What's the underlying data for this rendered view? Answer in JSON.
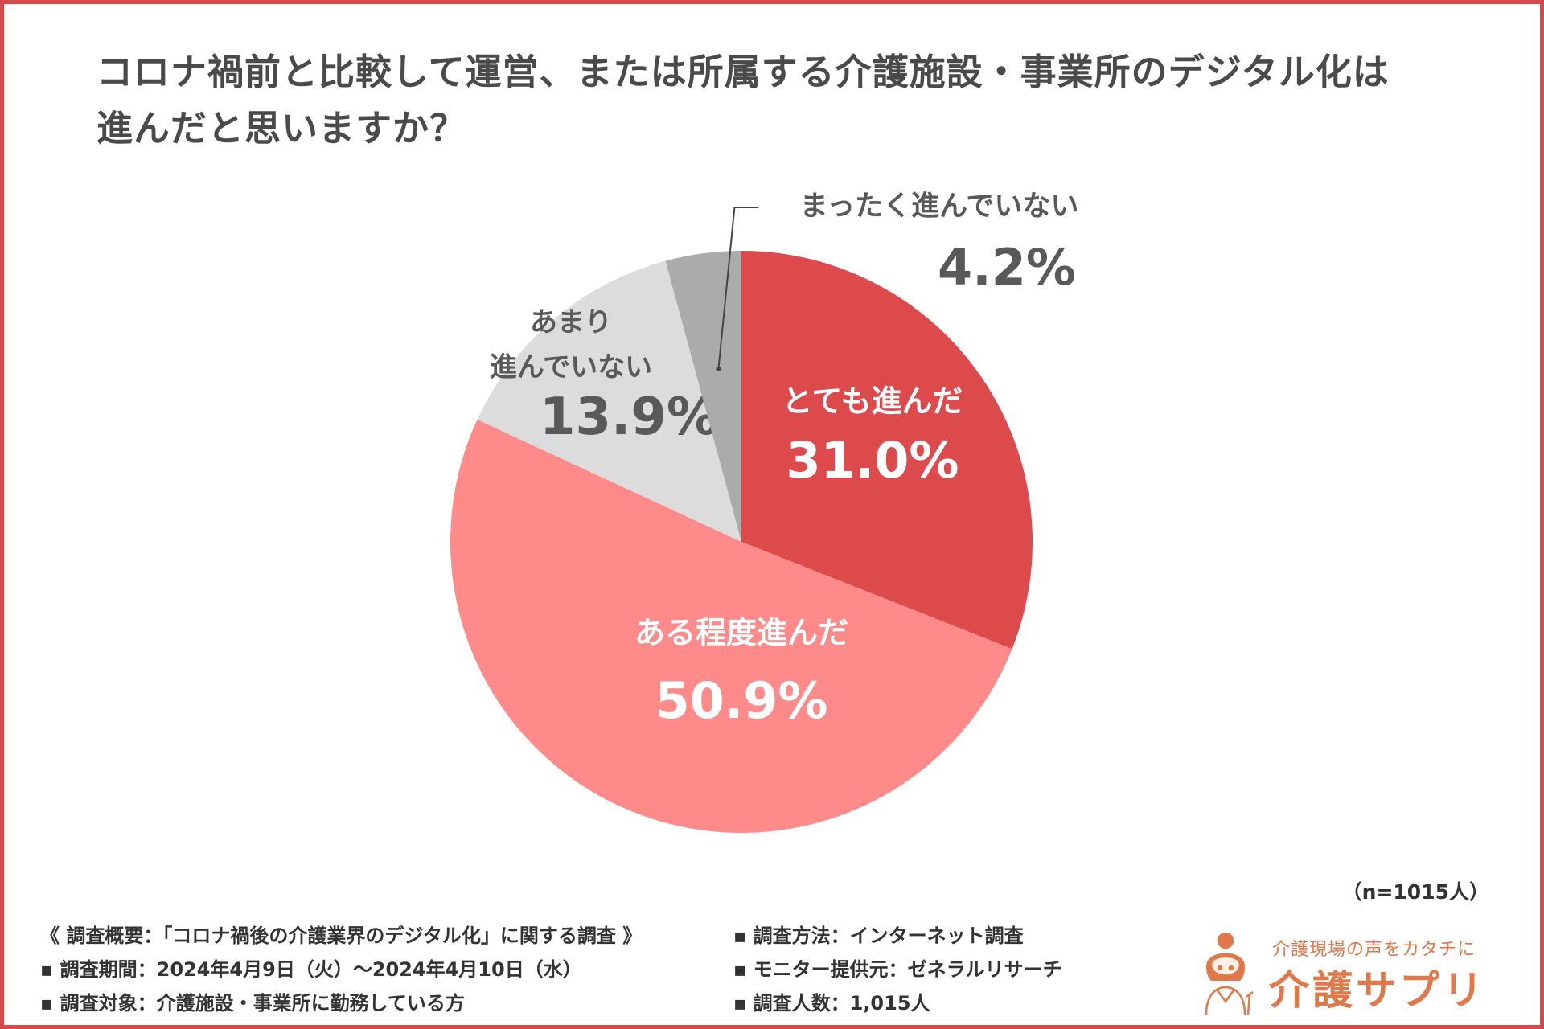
{
  "title": {
    "line1": "コロナ禍前と比較して運営、または所属する介護施設・事業所のデジタル化は",
    "line2": "進んだと思いますか？"
  },
  "chart_data": {
    "type": "pie",
    "title": "コロナ禍前と比較して運営、または所属する介護施設・事業所のデジタル化は進んだと思いますか？",
    "unit": "%",
    "slices": [
      {
        "label": "とても進んだ",
        "value": 31.0,
        "display": "31.0%",
        "color": "#dc4a4c",
        "text_color": "#ffffff"
      },
      {
        "label": "ある程度進んだ",
        "value": 50.9,
        "display": "50.9%",
        "color": "#fe8a8a",
        "text_color": "#ffffff"
      },
      {
        "label": "あまり\n進んでいない",
        "value": 13.9,
        "display": "13.9%",
        "color": "#dcdcdc",
        "text_color": "#595959"
      },
      {
        "label": "まったく進んでいない",
        "value": 4.2,
        "display": "4.2%",
        "color": "#ababab",
        "text_color": "#595959"
      }
    ]
  },
  "sample_size": "（n=1015人）",
  "notes": {
    "left": [
      "《 調査概要：「コロナ禍後の介護業界のデジタル化」に関する調査 》",
      "▪ 調査期間：2024年4月9日（火）～2024年4月10日（水）",
      "▪ 調査対象：介護施設・事業所に勤務している方"
    ],
    "right": [
      "▪ 調査方法：インターネット調査",
      "▪ モニター提供元：ゼネラルリサーチ",
      "▪ 調査人数：1,015人"
    ]
  },
  "logo": {
    "tagline": "介護現場の声をカタチに",
    "brand": "介護サプリ",
    "accent_color": "#e0784a"
  }
}
